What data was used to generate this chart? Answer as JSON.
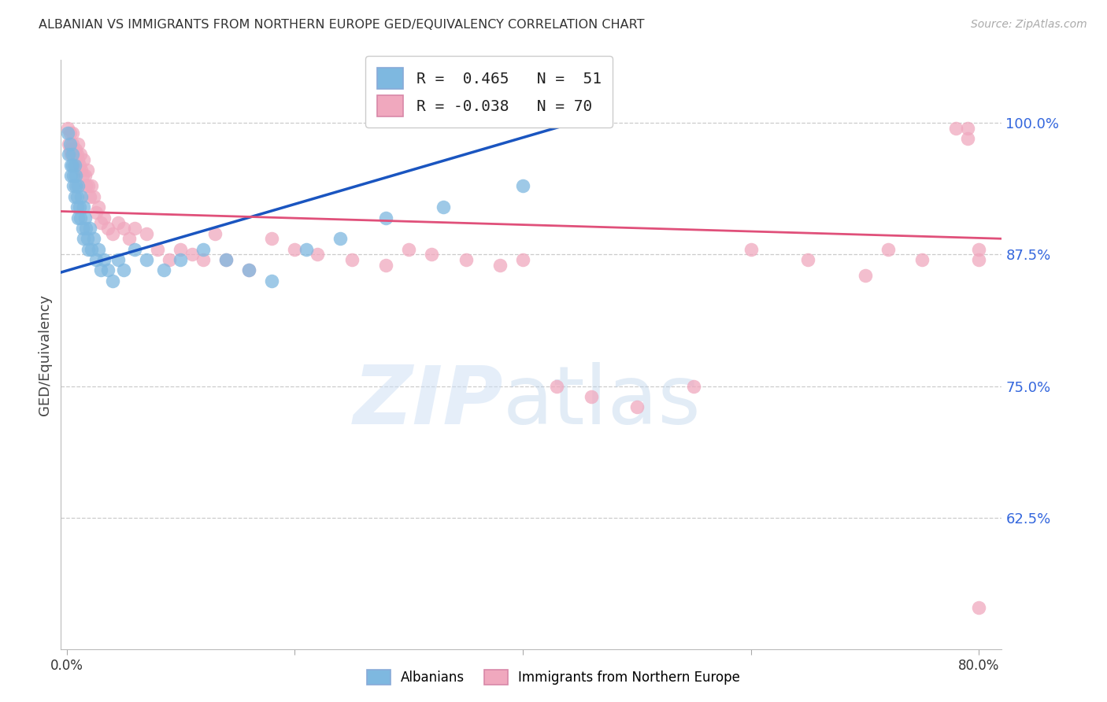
{
  "title": "ALBANIAN VS IMMIGRANTS FROM NORTHERN EUROPE GED/EQUIVALENCY CORRELATION CHART",
  "source_text": "Source: ZipAtlas.com",
  "ylabel": "GED/Equivalency",
  "ytick_vals": [
    0.625,
    0.75,
    0.875,
    1.0
  ],
  "ytick_labels": [
    "62.5%",
    "75.0%",
    "87.5%",
    "100.0%"
  ],
  "xlim": [
    -0.005,
    0.82
  ],
  "ylim": [
    0.5,
    1.06
  ],
  "legend_blue_label": "R =  0.465   N =  51",
  "legend_pink_label": "R = -0.038   N = 70",
  "blue_scatter_color": "#7eb8e0",
  "pink_scatter_color": "#f0a8be",
  "blue_line_color": "#1a55c0",
  "pink_line_color": "#e0507a",
  "blue_line_x": [
    -0.005,
    0.46
  ],
  "blue_line_y": [
    0.858,
    1.005
  ],
  "pink_line_x": [
    -0.005,
    0.82
  ],
  "pink_line_y": [
    0.916,
    0.89
  ],
  "watermark_color": "#ccdff0",
  "bottom_legend_blue": "Albanians",
  "bottom_legend_pink": "Immigrants from Northern Europe",
  "blue_x": [
    0.001,
    0.002,
    0.003,
    0.004,
    0.004,
    0.005,
    0.005,
    0.006,
    0.006,
    0.007,
    0.007,
    0.008,
    0.008,
    0.009,
    0.009,
    0.01,
    0.01,
    0.011,
    0.012,
    0.013,
    0.014,
    0.015,
    0.015,
    0.016,
    0.017,
    0.018,
    0.019,
    0.02,
    0.022,
    0.024,
    0.026,
    0.028,
    0.03,
    0.033,
    0.036,
    0.04,
    0.045,
    0.05,
    0.06,
    0.07,
    0.085,
    0.1,
    0.12,
    0.14,
    0.16,
    0.18,
    0.21,
    0.24,
    0.28,
    0.33,
    0.4
  ],
  "blue_y": [
    0.99,
    0.97,
    0.98,
    0.96,
    0.95,
    0.97,
    0.96,
    0.95,
    0.94,
    0.96,
    0.93,
    0.95,
    0.94,
    0.93,
    0.92,
    0.94,
    0.91,
    0.92,
    0.91,
    0.93,
    0.9,
    0.92,
    0.89,
    0.91,
    0.9,
    0.89,
    0.88,
    0.9,
    0.88,
    0.89,
    0.87,
    0.88,
    0.86,
    0.87,
    0.86,
    0.85,
    0.87,
    0.86,
    0.88,
    0.87,
    0.86,
    0.87,
    0.88,
    0.87,
    0.86,
    0.85,
    0.88,
    0.89,
    0.91,
    0.92,
    0.94
  ],
  "pink_x": [
    0.001,
    0.002,
    0.003,
    0.003,
    0.004,
    0.005,
    0.005,
    0.006,
    0.007,
    0.007,
    0.008,
    0.009,
    0.01,
    0.01,
    0.011,
    0.012,
    0.013,
    0.014,
    0.015,
    0.016,
    0.017,
    0.018,
    0.019,
    0.02,
    0.022,
    0.024,
    0.026,
    0.028,
    0.03,
    0.033,
    0.036,
    0.04,
    0.045,
    0.05,
    0.055,
    0.06,
    0.07,
    0.08,
    0.09,
    0.1,
    0.11,
    0.12,
    0.13,
    0.14,
    0.16,
    0.18,
    0.2,
    0.22,
    0.25,
    0.28,
    0.3,
    0.32,
    0.35,
    0.38,
    0.4,
    0.43,
    0.46,
    0.5,
    0.55,
    0.6,
    0.65,
    0.7,
    0.72,
    0.75,
    0.78,
    0.79,
    0.79,
    0.8,
    0.8,
    0.8
  ],
  "pink_y": [
    0.995,
    0.98,
    0.99,
    0.975,
    0.97,
    0.99,
    0.98,
    0.975,
    0.97,
    0.96,
    0.975,
    0.97,
    0.98,
    0.965,
    0.96,
    0.97,
    0.955,
    0.95,
    0.965,
    0.95,
    0.94,
    0.955,
    0.94,
    0.93,
    0.94,
    0.93,
    0.915,
    0.92,
    0.905,
    0.91,
    0.9,
    0.895,
    0.905,
    0.9,
    0.89,
    0.9,
    0.895,
    0.88,
    0.87,
    0.88,
    0.875,
    0.87,
    0.895,
    0.87,
    0.86,
    0.89,
    0.88,
    0.875,
    0.87,
    0.865,
    0.88,
    0.875,
    0.87,
    0.865,
    0.87,
    0.75,
    0.74,
    0.73,
    0.75,
    0.88,
    0.87,
    0.855,
    0.88,
    0.87,
    0.995,
    0.995,
    0.985,
    0.88,
    0.87,
    0.54
  ]
}
